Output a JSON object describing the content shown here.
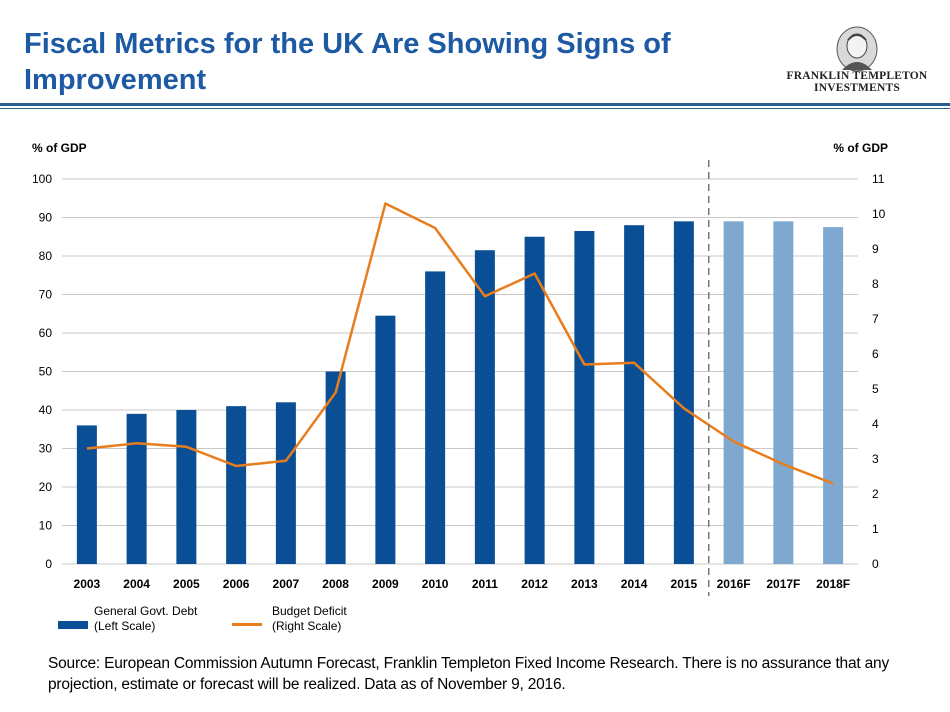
{
  "header": {
    "title": "Fiscal Metrics for the UK Are Showing Signs of Improvement",
    "logo_line1": "FRANKLIN TEMPLETON",
    "logo_line2": "INVESTMENTS"
  },
  "colors": {
    "debt_actual": "#0a4f95",
    "debt_forecast": "#7ea8cf",
    "deficit_line": "#e87d1e",
    "title": "#1d5aa3"
  },
  "chart_data": {
    "type": "bar",
    "categories": [
      "2003",
      "2004",
      "2005",
      "2006",
      "2007",
      "2008",
      "2009",
      "2010",
      "2011",
      "2012",
      "2013",
      "2014",
      "2015",
      "2016F",
      "2017F",
      "2018F"
    ],
    "left_axis": {
      "label": "% of GDP",
      "range": [
        0,
        100
      ],
      "ticks": [
        0,
        10,
        20,
        30,
        40,
        50,
        60,
        70,
        80,
        90,
        100
      ]
    },
    "right_axis": {
      "label": "% of GDP",
      "range": [
        0,
        11
      ],
      "ticks": [
        0,
        1,
        2,
        3,
        4,
        5,
        6,
        7,
        8,
        9,
        10,
        11
      ]
    },
    "series": [
      {
        "name": "General Govt. Debt",
        "name_note": "(Left Scale)",
        "type": "bar",
        "axis": "left",
        "values": [
          36,
          39,
          40,
          41,
          42,
          50,
          64.5,
          76,
          81.5,
          85,
          86.5,
          88,
          89,
          89,
          89,
          87.5
        ]
      },
      {
        "name": "Budget Deficit",
        "name_note": "(Right Scale)",
        "type": "line",
        "axis": "right",
        "values": [
          3.3,
          3.45,
          3.35,
          2.8,
          2.95,
          4.9,
          10.3,
          9.6,
          7.65,
          8.3,
          5.7,
          5.75,
          4.45,
          3.5,
          2.85,
          2.3
        ]
      }
    ],
    "forecast_start_index": 13,
    "grid": true,
    "legend_position": "bottom-left"
  },
  "footer": {
    "source": "Source: European Commission Autumn Forecast, Franklin Templeton Fixed Income Research. There is no assurance that any projection, estimate or forecast will be realized. Data as of November 9, 2016."
  }
}
